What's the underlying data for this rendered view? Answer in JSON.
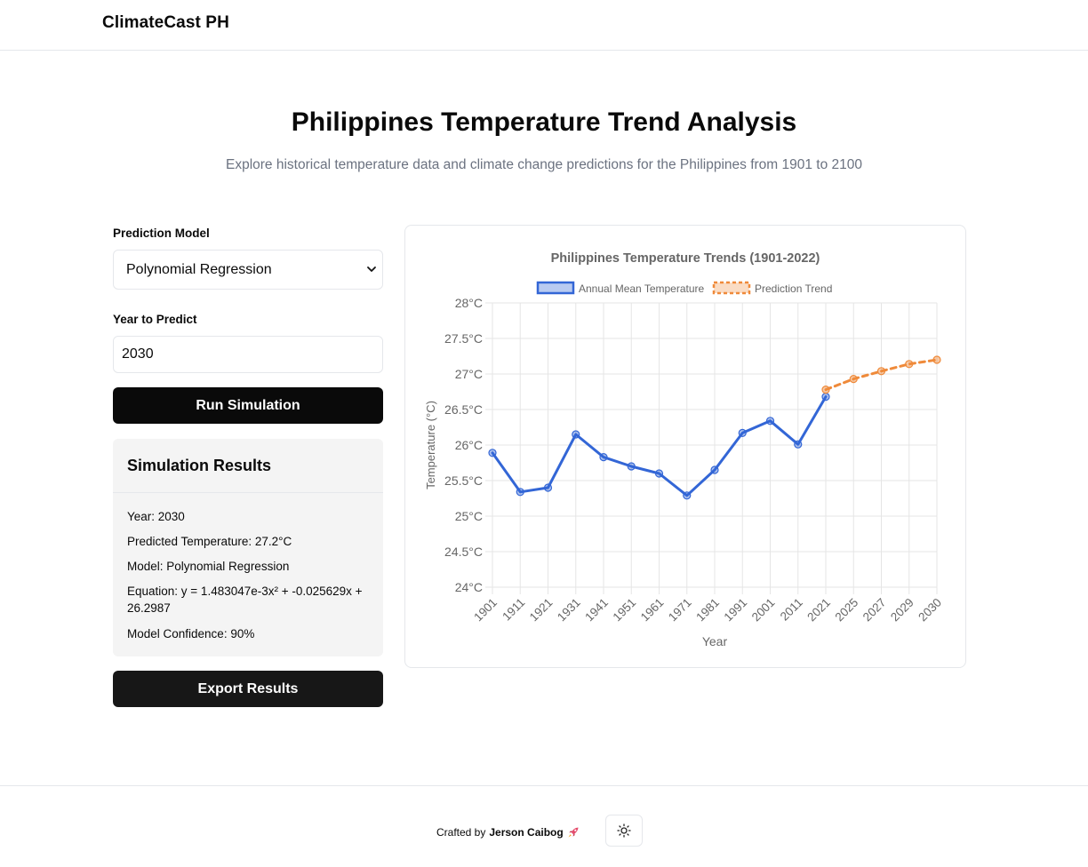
{
  "header": {
    "brand": "ClimateCast PH"
  },
  "hero": {
    "title": "Philippines Temperature Trend Analysis",
    "subtitle": "Explore historical temperature data and climate change predictions for the Philippines from 1901 to 2100"
  },
  "form": {
    "model_label": "Prediction Model",
    "model_value": "Polynomial Regression",
    "year_label": "Year to Predict",
    "year_value": "2030",
    "run_button": "Run Simulation",
    "export_button": "Export Results"
  },
  "results": {
    "title": "Simulation Results",
    "year": "Year: 2030",
    "predicted": "Predicted Temperature: 27.2°C",
    "model": "Model: Polynomial Regression",
    "equation": "Equation: y = 1.483047e-3x² + -0.025629x + 26.2987",
    "confidence": "Model Confidence: 90%"
  },
  "footer": {
    "crafted_by": "Crafted by",
    "author": "Jerson Caibog",
    "rocket_icon": "rocket-icon",
    "theme_icon": "sun-icon"
  },
  "colors": {
    "historical": "#3366d6",
    "prediction": "#ef8a3a",
    "button_dark": "#0a0a0a"
  },
  "chart_data": {
    "type": "line",
    "title": "Philippines Temperature Trends (1901-2022)",
    "xlabel": "Year",
    "ylabel": "Temperature (°C)",
    "ylim": [
      24,
      28
    ],
    "categories": [
      "1901",
      "1911",
      "1921",
      "1931",
      "1941",
      "1951",
      "1961",
      "1971",
      "1981",
      "1991",
      "2001",
      "2011",
      "2021",
      "2025",
      "2027",
      "2029",
      "2030"
    ],
    "y_ticks": [
      "24°C",
      "24.5°C",
      "25°C",
      "25.5°C",
      "26°C",
      "26.5°C",
      "27°C",
      "27.5°C",
      "28°C"
    ],
    "grid": true,
    "legend_position": "top",
    "series": [
      {
        "name": "Annual Mean Temperature",
        "style": "solid",
        "values": [
          25.89,
          25.34,
          25.4,
          26.15,
          25.83,
          25.7,
          25.6,
          25.29,
          25.65,
          26.17,
          26.34,
          26.01,
          26.68,
          null,
          null,
          null,
          null
        ]
      },
      {
        "name": "Prediction Trend",
        "style": "dashed",
        "values": [
          null,
          null,
          null,
          null,
          null,
          null,
          null,
          null,
          null,
          null,
          null,
          null,
          26.78,
          26.93,
          27.04,
          27.14,
          27.2
        ]
      }
    ]
  }
}
